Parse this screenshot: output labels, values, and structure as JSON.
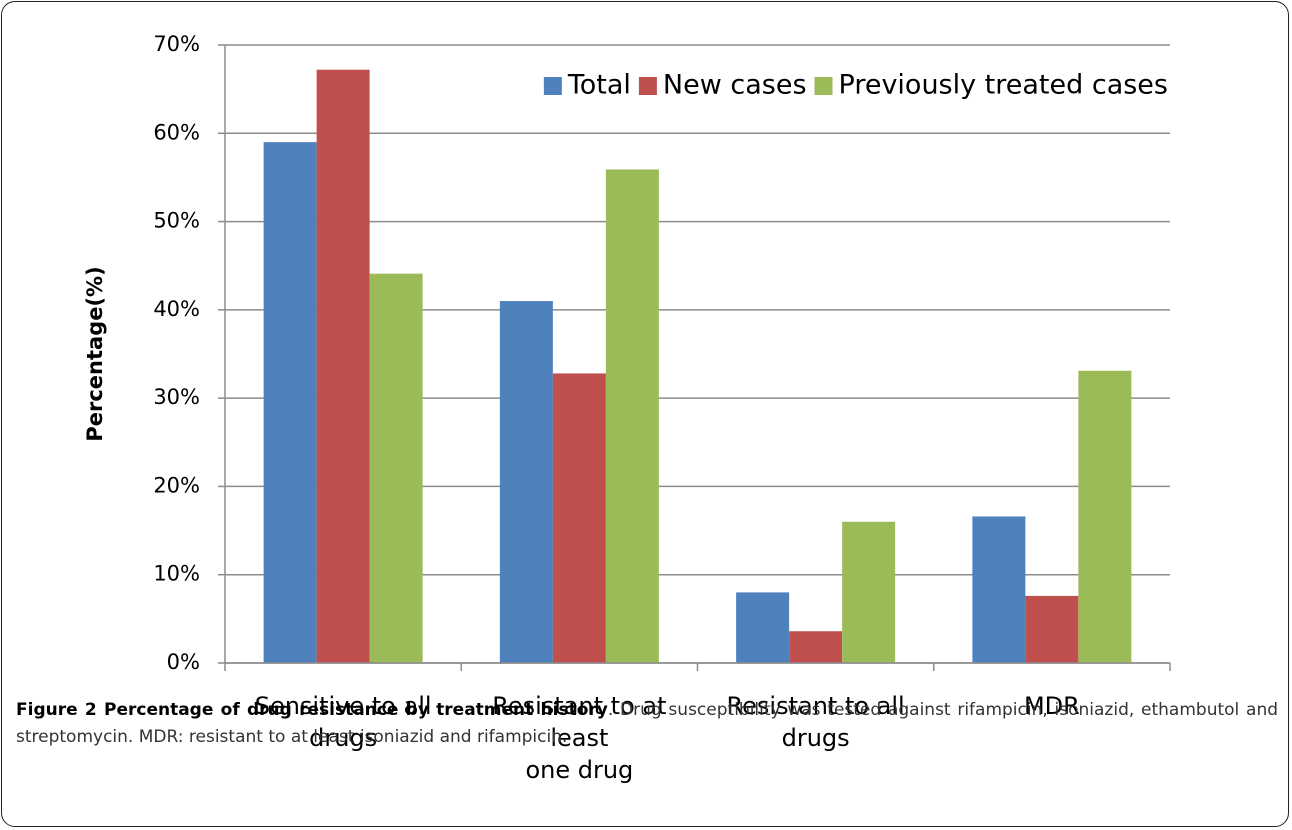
{
  "chart_data": {
    "type": "bar",
    "ylabel": "Percentage(%)",
    "categories": [
      "Sensitive to all\ndrugs",
      "Resistant to at least\none drug",
      "Resistant to all\ndrugs",
      "MDR"
    ],
    "series": [
      {
        "name": "Total",
        "color": "#4f81bd",
        "values": [
          59,
          41,
          8,
          16.6
        ]
      },
      {
        "name": "New cases",
        "color": "#c0504d",
        "values": [
          67.2,
          32.8,
          3.6,
          7.6
        ]
      },
      {
        "name": "Previously treated cases",
        "color": "#9bbb59",
        "values": [
          44.1,
          55.9,
          16,
          33.1
        ]
      }
    ],
    "ylim": [
      0,
      70
    ],
    "yticks": [
      {
        "value": 0,
        "label": "0%"
      },
      {
        "value": 10,
        "label": "10%"
      },
      {
        "value": 20,
        "label": "20%"
      },
      {
        "value": 30,
        "label": "30%"
      },
      {
        "value": 40,
        "label": "40%"
      },
      {
        "value": 50,
        "label": "50%"
      },
      {
        "value": 60,
        "label": "60%"
      },
      {
        "value": 70,
        "label": "70%"
      }
    ],
    "grid": true,
    "legend": "top-right"
  },
  "caption": {
    "title": "Figure 2 Percentage of drug resistance by treatment history",
    "text": ". Drug susceptibility was tested against rifampicin, isoniazid, ethambutol and streptomycin. MDR: resistant to at least isoniazid and rifampicin."
  }
}
